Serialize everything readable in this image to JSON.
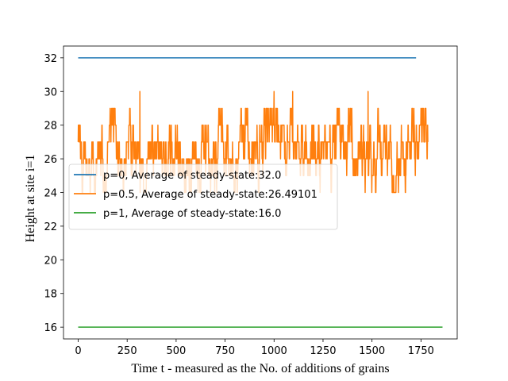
{
  "chart_data": {
    "type": "line",
    "title": "",
    "xlabel": "Time t - measured as the No. of additions of grains",
    "ylabel": "Height at site i=1",
    "xlim": [
      -75,
      1935
    ],
    "ylim": [
      15.3,
      32.7
    ],
    "xticks": [
      0,
      250,
      500,
      750,
      1000,
      1250,
      1500,
      1750
    ],
    "yticks": [
      16,
      18,
      20,
      22,
      24,
      26,
      28,
      30,
      32
    ],
    "grid": false,
    "legend_position": "center-left",
    "series": [
      {
        "name": "p=0, Average of steady-state:32.0",
        "color": "#1f77b4",
        "kind": "constant",
        "x_start": 0,
        "x_end": 1725,
        "value": 32
      },
      {
        "name": "p=0.5, Average of steady-state:26.49101",
        "color": "#ff7f0e",
        "kind": "noisy",
        "x_start": 0,
        "x_end": 1785,
        "min": 24,
        "max": 30,
        "mean": 26.49101,
        "initial_value": 26,
        "peaks": [
          {
            "x": 315,
            "value": 30
          },
          {
            "x": 1000,
            "value": 30
          },
          {
            "x": 1095,
            "value": 30
          },
          {
            "x": 1480,
            "value": 30
          }
        ],
        "end_value": 27
      },
      {
        "name": "p=1, Average of steady-state:16.0",
        "color": "#2ca02c",
        "kind": "constant",
        "x_start": 0,
        "x_end": 1860,
        "value": 16
      }
    ]
  }
}
